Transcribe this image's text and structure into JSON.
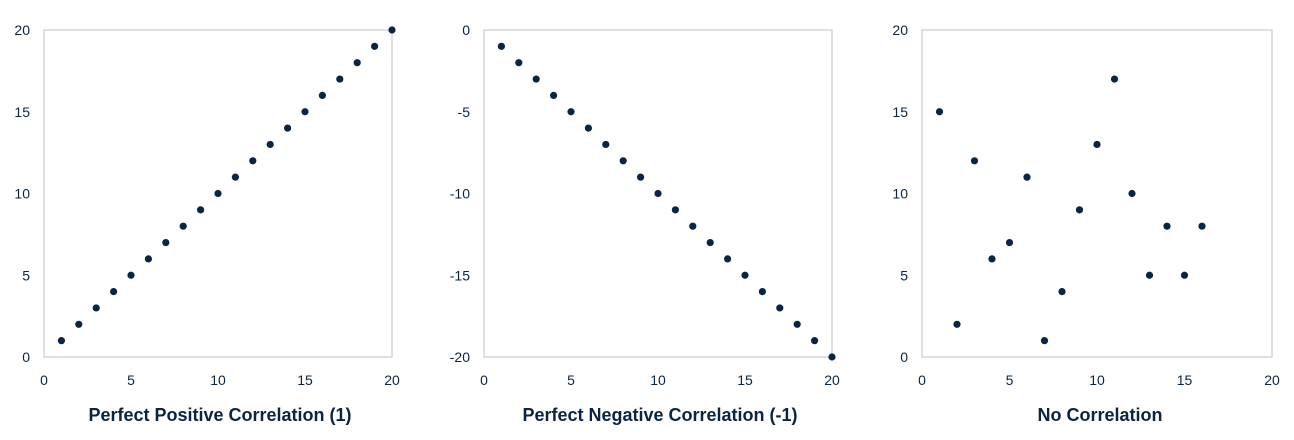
{
  "chart_data": [
    {
      "type": "scatter",
      "title": "Perfect Positive Correlation (1)",
      "xlabel": "",
      "ylabel": "",
      "xlim": [
        0,
        20
      ],
      "ylim": [
        0,
        20
      ],
      "xticks": [
        0,
        5,
        10,
        15,
        20
      ],
      "yticks": [
        0,
        5,
        10,
        15,
        20
      ],
      "grid": false,
      "color": "#0b2440",
      "points": [
        {
          "x": 1,
          "y": 1
        },
        {
          "x": 2,
          "y": 2
        },
        {
          "x": 3,
          "y": 3
        },
        {
          "x": 4,
          "y": 4
        },
        {
          "x": 5,
          "y": 5
        },
        {
          "x": 6,
          "y": 6
        },
        {
          "x": 7,
          "y": 7
        },
        {
          "x": 8,
          "y": 8
        },
        {
          "x": 9,
          "y": 9
        },
        {
          "x": 10,
          "y": 10
        },
        {
          "x": 11,
          "y": 11
        },
        {
          "x": 12,
          "y": 12
        },
        {
          "x": 13,
          "y": 13
        },
        {
          "x": 14,
          "y": 14
        },
        {
          "x": 15,
          "y": 15
        },
        {
          "x": 16,
          "y": 16
        },
        {
          "x": 17,
          "y": 17
        },
        {
          "x": 18,
          "y": 18
        },
        {
          "x": 19,
          "y": 19
        },
        {
          "x": 20,
          "y": 20
        }
      ]
    },
    {
      "type": "scatter",
      "title": "Perfect Negative Correlation (-1)",
      "xlabel": "",
      "ylabel": "",
      "xlim": [
        0,
        20
      ],
      "ylim": [
        -20,
        0
      ],
      "xticks": [
        0,
        5,
        10,
        15,
        20
      ],
      "yticks": [
        0,
        -5,
        -10,
        -15,
        -20
      ],
      "grid": false,
      "color": "#0b2440",
      "points": [
        {
          "x": 1,
          "y": -1
        },
        {
          "x": 2,
          "y": -2
        },
        {
          "x": 3,
          "y": -3
        },
        {
          "x": 4,
          "y": -4
        },
        {
          "x": 5,
          "y": -5
        },
        {
          "x": 6,
          "y": -6
        },
        {
          "x": 7,
          "y": -7
        },
        {
          "x": 8,
          "y": -8
        },
        {
          "x": 9,
          "y": -9
        },
        {
          "x": 10,
          "y": -10
        },
        {
          "x": 11,
          "y": -11
        },
        {
          "x": 12,
          "y": -12
        },
        {
          "x": 13,
          "y": -13
        },
        {
          "x": 14,
          "y": -14
        },
        {
          "x": 15,
          "y": -15
        },
        {
          "x": 16,
          "y": -16
        },
        {
          "x": 17,
          "y": -17
        },
        {
          "x": 18,
          "y": -18
        },
        {
          "x": 19,
          "y": -19
        },
        {
          "x": 20,
          "y": -20
        }
      ]
    },
    {
      "type": "scatter",
      "title": "No Correlation",
      "xlabel": "",
      "ylabel": "",
      "xlim": [
        0,
        20
      ],
      "ylim": [
        0,
        20
      ],
      "xticks": [
        0,
        5,
        10,
        15,
        20
      ],
      "yticks": [
        0,
        5,
        10,
        15,
        20
      ],
      "grid": false,
      "color": "#0b2440",
      "points": [
        {
          "x": 1,
          "y": 15
        },
        {
          "x": 2,
          "y": 2
        },
        {
          "x": 3,
          "y": 12
        },
        {
          "x": 4,
          "y": 6
        },
        {
          "x": 5,
          "y": 7
        },
        {
          "x": 6,
          "y": 11
        },
        {
          "x": 7,
          "y": 1
        },
        {
          "x": 8,
          "y": 4
        },
        {
          "x": 9,
          "y": 9
        },
        {
          "x": 10,
          "y": 13
        },
        {
          "x": 11,
          "y": 17
        },
        {
          "x": 12,
          "y": 10
        },
        {
          "x": 13,
          "y": 5
        },
        {
          "x": 14,
          "y": 8
        },
        {
          "x": 15,
          "y": 5
        },
        {
          "x": 16,
          "y": 8
        }
      ]
    }
  ]
}
